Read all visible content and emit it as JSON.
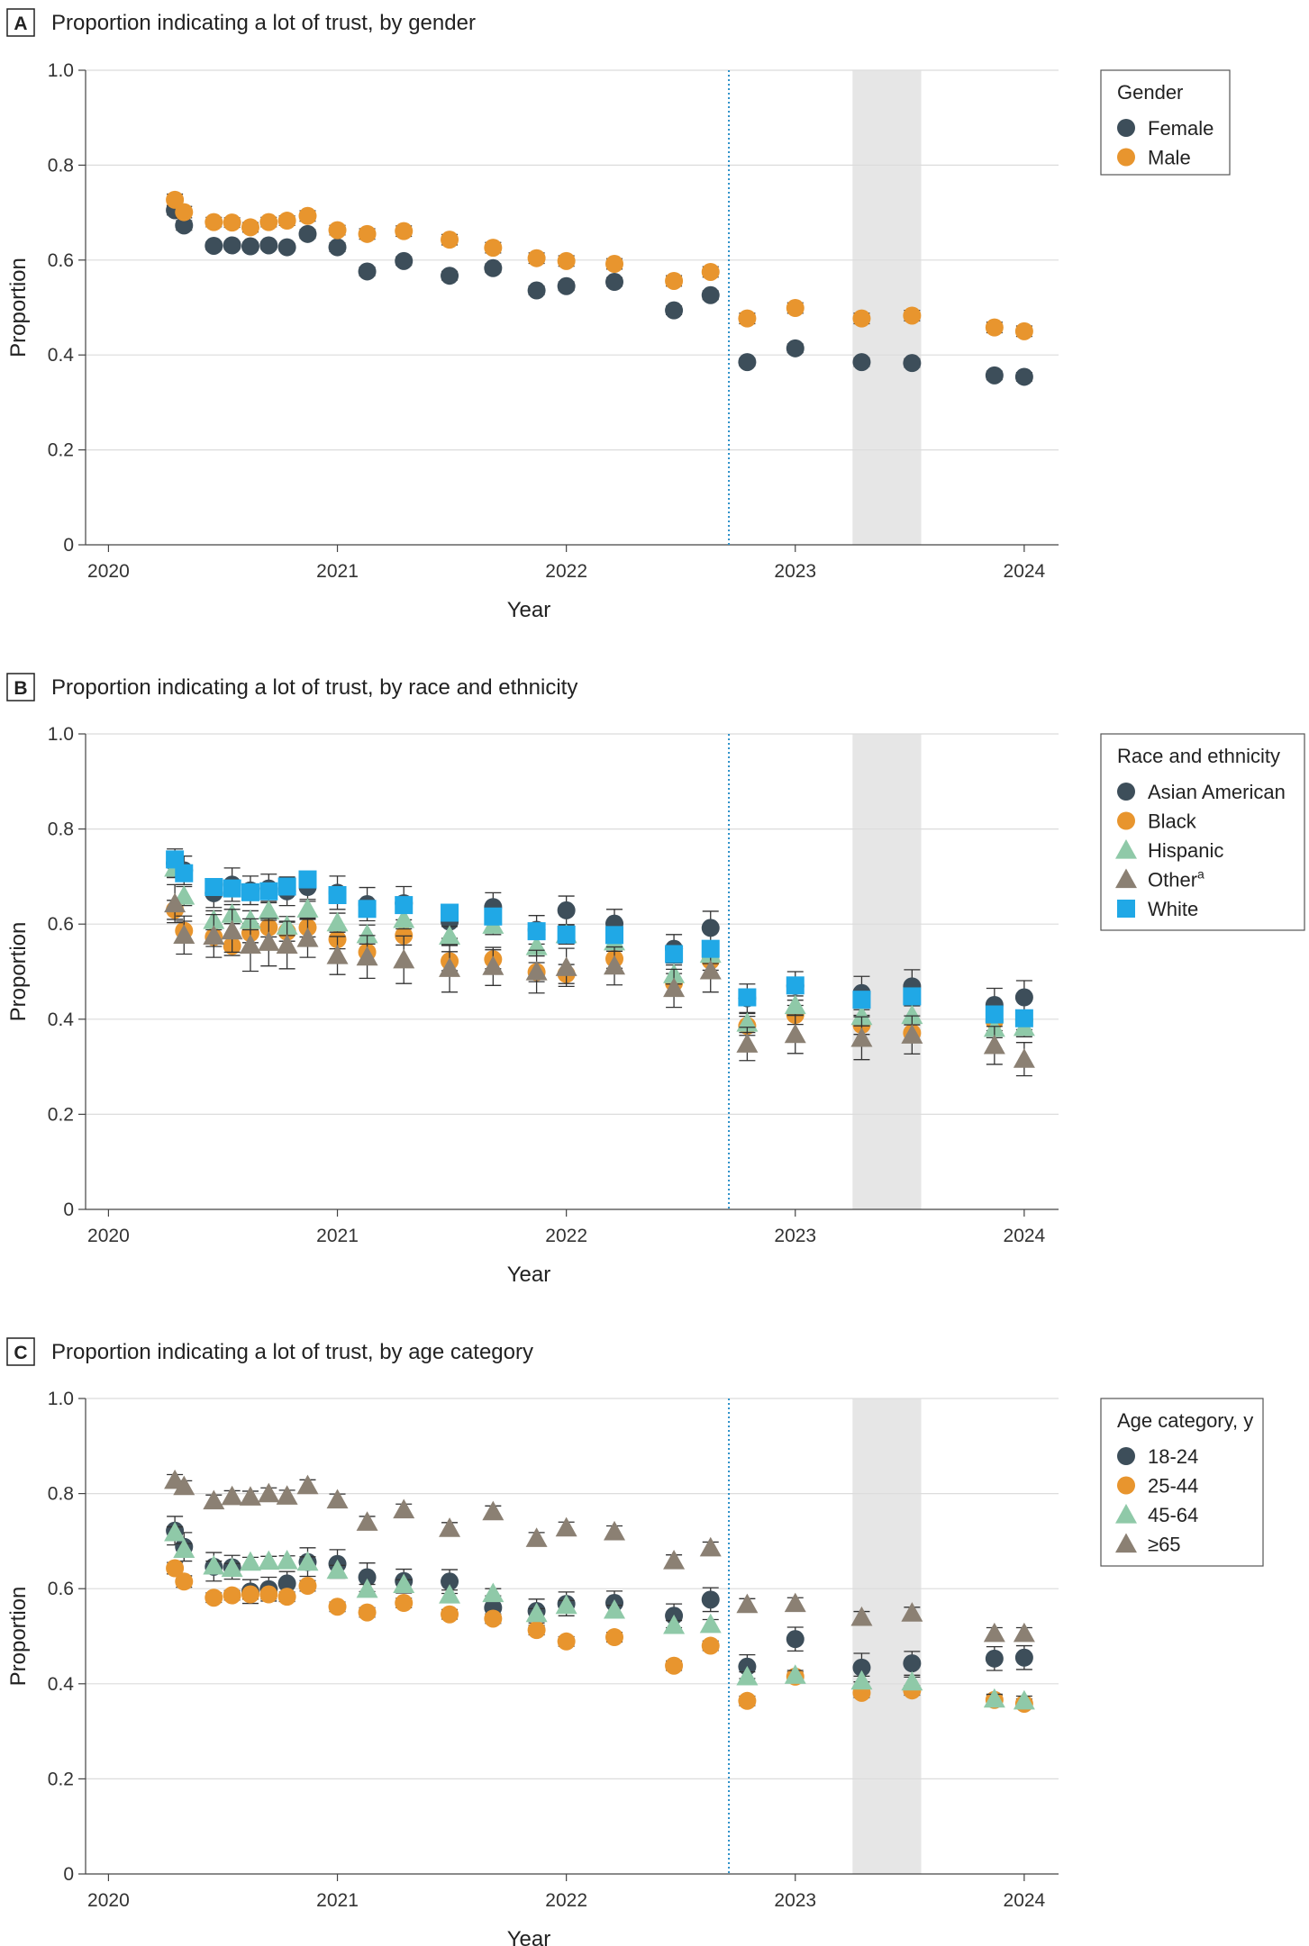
{
  "colors": {
    "dark": "#3d4e5a",
    "orange": "#e8952e",
    "green": "#8fc9a8",
    "taupe": "#8b8073",
    "blue": "#20a8e6",
    "shade": "#e6e6e6",
    "dotted_line": "#2a8fc8"
  },
  "chart_data": [
    {
      "type": "scatter",
      "panel_letter": "A",
      "title": "Proportion indicating a lot of trust, by gender",
      "xlabel": "Year",
      "ylabel": "Proportion",
      "x_ticks": [
        "2020",
        "2021",
        "2022",
        "2023",
        "2024"
      ],
      "y_ticks": [
        "0",
        "0.2",
        "0.4",
        "0.6",
        "0.8",
        "1.0"
      ],
      "xlim": [
        2019.9,
        2024.15
      ],
      "ylim": [
        0,
        1.0
      ],
      "vertical_line_x": 2022.71,
      "shaded_range": [
        2023.25,
        2023.55
      ],
      "legend_title": "Gender",
      "series": [
        {
          "name": "Female",
          "marker": "circle",
          "color": "#3d4e5a",
          "x": [
            2020.29,
            2020.33,
            2020.46,
            2020.54,
            2020.62,
            2020.7,
            2020.78,
            2020.87,
            2021.0,
            2021.13,
            2021.29,
            2021.49,
            2021.68,
            2021.87,
            2022.0,
            2022.21,
            2022.47,
            2022.63,
            2022.79,
            2023.0,
            2023.29,
            2023.51,
            2023.87,
            2024.0
          ],
          "y": [
            0.705,
            0.673,
            0.63,
            0.631,
            0.629,
            0.631,
            0.627,
            0.655,
            0.627,
            0.576,
            0.598,
            0.567,
            0.583,
            0.536,
            0.545,
            0.554,
            0.494,
            0.526,
            0.385,
            0.414,
            0.385,
            0.383,
            0.357,
            0.354
          ],
          "err": [
            0.01,
            0.01,
            0.008,
            0.008,
            0.008,
            0.008,
            0.008,
            0.009,
            0.009,
            0.009,
            0.009,
            0.009,
            0.009,
            0.009,
            0.009,
            0.009,
            0.009,
            0.009,
            0.008,
            0.009,
            0.009,
            0.009,
            0.009,
            0.009
          ]
        },
        {
          "name": "Male",
          "marker": "circle",
          "color": "#e8952e",
          "x": [
            2020.29,
            2020.33,
            2020.46,
            2020.54,
            2020.62,
            2020.7,
            2020.78,
            2020.87,
            2021.0,
            2021.13,
            2021.29,
            2021.49,
            2021.68,
            2021.87,
            2022.0,
            2022.21,
            2022.47,
            2022.63,
            2022.79,
            2023.0,
            2023.29,
            2023.51,
            2023.87,
            2024.0
          ],
          "y": [
            0.727,
            0.701,
            0.68,
            0.679,
            0.669,
            0.68,
            0.683,
            0.693,
            0.663,
            0.655,
            0.661,
            0.643,
            0.626,
            0.604,
            0.598,
            0.592,
            0.556,
            0.575,
            0.477,
            0.499,
            0.477,
            0.483,
            0.458,
            0.45
          ],
          "err": [
            0.012,
            0.012,
            0.01,
            0.01,
            0.01,
            0.01,
            0.01,
            0.011,
            0.01,
            0.011,
            0.011,
            0.011,
            0.011,
            0.011,
            0.011,
            0.011,
            0.011,
            0.011,
            0.011,
            0.011,
            0.011,
            0.011,
            0.011,
            0.011
          ]
        }
      ]
    },
    {
      "type": "scatter",
      "panel_letter": "B",
      "title": "Proportion indicating a lot of trust, by race and ethnicity",
      "xlabel": "Year",
      "ylabel": "Proportion",
      "x_ticks": [
        "2020",
        "2021",
        "2022",
        "2023",
        "2024"
      ],
      "y_ticks": [
        "0",
        "0.2",
        "0.4",
        "0.6",
        "0.8",
        "1.0"
      ],
      "xlim": [
        2019.9,
        2024.15
      ],
      "ylim": [
        0,
        1.0
      ],
      "vertical_line_x": 2022.71,
      "shaded_range": [
        2023.25,
        2023.55
      ],
      "legend_title": "Race and ethnicity",
      "series": [
        {
          "name": "Asian American",
          "sup": "",
          "marker": "circle",
          "color": "#3d4e5a",
          "x": [
            2020.29,
            2020.33,
            2020.46,
            2020.54,
            2020.62,
            2020.7,
            2020.78,
            2020.87,
            2021.0,
            2021.13,
            2021.29,
            2021.49,
            2021.68,
            2021.87,
            2022.0,
            2022.21,
            2022.47,
            2022.63,
            2022.79,
            2023.0,
            2023.29,
            2023.51,
            2023.87,
            2024.0
          ],
          "y": [
            0.728,
            0.713,
            0.665,
            0.683,
            0.671,
            0.675,
            0.669,
            0.678,
            0.666,
            0.642,
            0.644,
            0.605,
            0.636,
            0.588,
            0.629,
            0.601,
            0.548,
            0.592,
            0.444,
            0.47,
            0.455,
            0.469,
            0.43,
            0.446
          ],
          "err": [
            0.03,
            0.03,
            0.03,
            0.035,
            0.03,
            0.03,
            0.03,
            0.03,
            0.035,
            0.035,
            0.035,
            0.035,
            0.03,
            0.03,
            0.03,
            0.03,
            0.03,
            0.035,
            0.03,
            0.03,
            0.035,
            0.035,
            0.035,
            0.035
          ]
        },
        {
          "name": "Black",
          "sup": "",
          "marker": "circle",
          "color": "#e8952e",
          "x": [
            2020.29,
            2020.33,
            2020.46,
            2020.54,
            2020.62,
            2020.7,
            2020.78,
            2020.87,
            2021.0,
            2021.13,
            2021.29,
            2021.49,
            2021.68,
            2021.87,
            2022.0,
            2022.21,
            2022.47,
            2022.63,
            2022.79,
            2023.0,
            2023.29,
            2023.51,
            2023.87,
            2024.0
          ],
          "y": [
            0.63,
            0.586,
            0.573,
            0.554,
            0.581,
            0.593,
            0.584,
            0.593,
            0.568,
            0.541,
            0.576,
            0.522,
            0.526,
            0.499,
            0.495,
            0.527,
            0.476,
            0.523,
            0.386,
            0.409,
            0.388,
            0.371,
            0.396,
            0.398
          ],
          "err": [
            0.02,
            0.02,
            0.02,
            0.02,
            0.02,
            0.02,
            0.02,
            0.02,
            0.02,
            0.02,
            0.02,
            0.02,
            0.02,
            0.02,
            0.02,
            0.02,
            0.02,
            0.02,
            0.02,
            0.02,
            0.02,
            0.02,
            0.02,
            0.02
          ]
        },
        {
          "name": "Hispanic",
          "sup": "",
          "marker": "triangle",
          "color": "#8fc9a8",
          "x": [
            2020.29,
            2020.33,
            2020.46,
            2020.54,
            2020.62,
            2020.7,
            2020.78,
            2020.87,
            2021.0,
            2021.13,
            2021.29,
            2021.49,
            2021.68,
            2021.87,
            2022.0,
            2022.21,
            2022.47,
            2022.63,
            2022.79,
            2023.0,
            2023.29,
            2023.51,
            2023.87,
            2024.0
          ],
          "y": [
            0.718,
            0.659,
            0.608,
            0.621,
            0.608,
            0.628,
            0.596,
            0.632,
            0.603,
            0.578,
            0.61,
            0.575,
            0.598,
            0.553,
            0.578,
            0.563,
            0.494,
            0.537,
            0.392,
            0.429,
            0.406,
            0.408,
            0.381,
            0.383
          ],
          "err": [
            0.02,
            0.02,
            0.02,
            0.02,
            0.02,
            0.02,
            0.02,
            0.02,
            0.02,
            0.02,
            0.02,
            0.02,
            0.02,
            0.02,
            0.02,
            0.02,
            0.02,
            0.02,
            0.02,
            0.02,
            0.02,
            0.02,
            0.02,
            0.02
          ]
        },
        {
          "name": "Other",
          "sup": "a",
          "marker": "triangle",
          "color": "#8b8073",
          "x": [
            2020.29,
            2020.33,
            2020.46,
            2020.54,
            2020.62,
            2020.7,
            2020.78,
            2020.87,
            2021.0,
            2021.13,
            2021.29,
            2021.49,
            2021.68,
            2021.87,
            2022.0,
            2022.21,
            2022.47,
            2022.63,
            2022.79,
            2023.0,
            2023.29,
            2023.51,
            2023.87,
            2024.0
          ],
          "y": [
            0.643,
            0.577,
            0.575,
            0.586,
            0.556,
            0.562,
            0.556,
            0.57,
            0.534,
            0.531,
            0.525,
            0.507,
            0.511,
            0.5,
            0.509,
            0.512,
            0.465,
            0.502,
            0.348,
            0.368,
            0.36,
            0.367,
            0.345,
            0.316
          ],
          "err": [
            0.04,
            0.04,
            0.045,
            0.045,
            0.055,
            0.05,
            0.05,
            0.04,
            0.04,
            0.045,
            0.05,
            0.05,
            0.04,
            0.045,
            0.04,
            0.04,
            0.04,
            0.045,
            0.035,
            0.04,
            0.045,
            0.04,
            0.04,
            0.035
          ]
        },
        {
          "name": "White",
          "sup": "",
          "marker": "square",
          "color": "#20a8e6",
          "x": [
            2020.29,
            2020.33,
            2020.46,
            2020.54,
            2020.62,
            2020.7,
            2020.78,
            2020.87,
            2021.0,
            2021.13,
            2021.29,
            2021.49,
            2021.68,
            2021.87,
            2022.0,
            2022.21,
            2022.47,
            2022.63,
            2022.79,
            2023.0,
            2023.29,
            2023.51,
            2023.87,
            2024.0
          ],
          "y": [
            0.736,
            0.707,
            0.678,
            0.675,
            0.667,
            0.669,
            0.679,
            0.694,
            0.661,
            0.632,
            0.64,
            0.624,
            0.616,
            0.585,
            0.578,
            0.577,
            0.537,
            0.548,
            0.446,
            0.471,
            0.441,
            0.448,
            0.41,
            0.402
          ],
          "err": [
            0.01,
            0.01,
            0.008,
            0.008,
            0.008,
            0.008,
            0.008,
            0.009,
            0.009,
            0.009,
            0.009,
            0.009,
            0.009,
            0.009,
            0.009,
            0.009,
            0.009,
            0.009,
            0.009,
            0.009,
            0.009,
            0.009,
            0.009,
            0.009
          ]
        }
      ]
    },
    {
      "type": "scatter",
      "panel_letter": "C",
      "title": "Proportion indicating a lot of trust, by age category",
      "xlabel": "Year",
      "ylabel": "Proportion",
      "x_ticks": [
        "2020",
        "2021",
        "2022",
        "2023",
        "2024"
      ],
      "y_ticks": [
        "0",
        "0.2",
        "0.4",
        "0.6",
        "0.8",
        "1.0"
      ],
      "xlim": [
        2019.9,
        2024.15
      ],
      "ylim": [
        0,
        1.0
      ],
      "vertical_line_x": 2022.71,
      "shaded_range": [
        2023.25,
        2023.55
      ],
      "legend_title": "Age category, y",
      "series": [
        {
          "name": "18-24",
          "marker": "circle",
          "color": "#3d4e5a",
          "x": [
            2020.29,
            2020.33,
            2020.46,
            2020.54,
            2020.62,
            2020.7,
            2020.78,
            2020.87,
            2021.0,
            2021.13,
            2021.29,
            2021.49,
            2021.68,
            2021.87,
            2022.0,
            2022.21,
            2022.47,
            2022.63,
            2022.79,
            2023.0,
            2023.29,
            2023.51,
            2023.87,
            2024.0
          ],
          "y": [
            0.722,
            0.688,
            0.646,
            0.645,
            0.594,
            0.599,
            0.611,
            0.656,
            0.652,
            0.624,
            0.616,
            0.615,
            0.56,
            0.553,
            0.568,
            0.57,
            0.543,
            0.577,
            0.436,
            0.494,
            0.434,
            0.443,
            0.453,
            0.455
          ],
          "err": [
            0.03,
            0.03,
            0.03,
            0.025,
            0.025,
            0.025,
            0.025,
            0.03,
            0.03,
            0.03,
            0.025,
            0.025,
            0.025,
            0.025,
            0.025,
            0.025,
            0.025,
            0.025,
            0.025,
            0.025,
            0.03,
            0.025,
            0.025,
            0.025
          ]
        },
        {
          "name": "25-44",
          "marker": "circle",
          "color": "#e8952e",
          "x": [
            2020.29,
            2020.33,
            2020.46,
            2020.54,
            2020.62,
            2020.7,
            2020.78,
            2020.87,
            2021.0,
            2021.13,
            2021.29,
            2021.49,
            2021.68,
            2021.87,
            2022.0,
            2022.21,
            2022.47,
            2022.63,
            2022.79,
            2023.0,
            2023.29,
            2023.51,
            2023.87,
            2024.0
          ],
          "y": [
            0.643,
            0.615,
            0.581,
            0.586,
            0.588,
            0.588,
            0.583,
            0.606,
            0.562,
            0.55,
            0.57,
            0.546,
            0.537,
            0.513,
            0.489,
            0.498,
            0.438,
            0.48,
            0.364,
            0.415,
            0.381,
            0.386,
            0.366,
            0.358
          ],
          "err": [
            0.012,
            0.012,
            0.01,
            0.01,
            0.01,
            0.01,
            0.01,
            0.011,
            0.01,
            0.01,
            0.01,
            0.01,
            0.01,
            0.01,
            0.01,
            0.01,
            0.01,
            0.01,
            0.01,
            0.01,
            0.01,
            0.01,
            0.01,
            0.01
          ]
        },
        {
          "name": "45-64",
          "marker": "triangle",
          "color": "#8fc9a8",
          "x": [
            2020.29,
            2020.33,
            2020.46,
            2020.54,
            2020.62,
            2020.7,
            2020.78,
            2020.87,
            2021.0,
            2021.13,
            2021.29,
            2021.49,
            2021.68,
            2021.87,
            2022.0,
            2022.21,
            2022.47,
            2022.63,
            2022.79,
            2023.0,
            2023.29,
            2023.51,
            2023.87,
            2024.0
          ],
          "y": [
            0.718,
            0.683,
            0.648,
            0.643,
            0.656,
            0.658,
            0.659,
            0.656,
            0.639,
            0.599,
            0.609,
            0.587,
            0.59,
            0.548,
            0.565,
            0.555,
            0.523,
            0.525,
            0.415,
            0.418,
            0.406,
            0.404,
            0.368,
            0.364
          ],
          "err": [
            0.012,
            0.012,
            0.01,
            0.01,
            0.01,
            0.01,
            0.01,
            0.011,
            0.01,
            0.01,
            0.01,
            0.01,
            0.01,
            0.01,
            0.01,
            0.01,
            0.01,
            0.01,
            0.01,
            0.01,
            0.01,
            0.01,
            0.01,
            0.01
          ]
        },
        {
          "name": "≥65",
          "marker": "triangle",
          "color": "#8b8073",
          "x": [
            2020.29,
            2020.33,
            2020.46,
            2020.54,
            2020.62,
            2020.7,
            2020.78,
            2020.87,
            2021.0,
            2021.13,
            2021.29,
            2021.49,
            2021.68,
            2021.87,
            2022.0,
            2022.21,
            2022.47,
            2022.63,
            2022.79,
            2023.0,
            2023.29,
            2023.51,
            2023.87,
            2024.0
          ],
          "y": [
            0.828,
            0.815,
            0.785,
            0.794,
            0.793,
            0.8,
            0.795,
            0.817,
            0.787,
            0.74,
            0.766,
            0.727,
            0.762,
            0.706,
            0.728,
            0.72,
            0.659,
            0.686,
            0.567,
            0.569,
            0.54,
            0.549,
            0.506,
            0.506
          ],
          "err": [
            0.012,
            0.012,
            0.012,
            0.012,
            0.012,
            0.012,
            0.012,
            0.012,
            0.012,
            0.012,
            0.012,
            0.012,
            0.012,
            0.012,
            0.012,
            0.012,
            0.012,
            0.012,
            0.012,
            0.012,
            0.012,
            0.012,
            0.012,
            0.012
          ]
        }
      ]
    }
  ]
}
